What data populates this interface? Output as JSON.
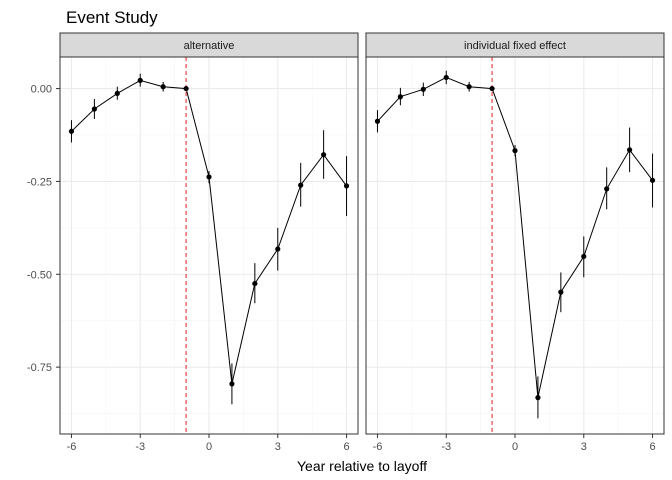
{
  "chart_data": {
    "type": "line",
    "title": "Event Study",
    "xlabel": "Year relative to layoff",
    "ylabel": "",
    "xlim": [
      -6.5,
      6.5
    ],
    "ylim": [
      -0.93,
      0.085
    ],
    "x_ticks": [
      -6,
      -3,
      0,
      3,
      6
    ],
    "x_tick_labels": [
      "-6",
      "-3",
      "0",
      "3",
      "6"
    ],
    "y_ticks": [
      0.0,
      -0.25,
      -0.5,
      -0.75
    ],
    "y_tick_labels": [
      "0.00",
      "-0.25",
      "-0.50",
      "-0.75"
    ],
    "reference_line": {
      "x": -1,
      "color": "#e41a1c",
      "style": "dashed"
    },
    "grid": true,
    "facets": [
      {
        "label": "alternative",
        "points": [
          {
            "x": -6,
            "y": -0.115,
            "lo": -0.145,
            "hi": -0.085
          },
          {
            "x": -5,
            "y": -0.055,
            "lo": -0.082,
            "hi": -0.028
          },
          {
            "x": -4,
            "y": -0.013,
            "lo": -0.03,
            "hi": 0.005
          },
          {
            "x": -3,
            "y": 0.022,
            "lo": 0.005,
            "hi": 0.04
          },
          {
            "x": -2,
            "y": 0.005,
            "lo": -0.008,
            "hi": 0.018
          },
          {
            "x": -1,
            "y": 0.0,
            "lo": 0.0,
            "hi": 0.0
          },
          {
            "x": 0,
            "y": -0.238,
            "lo": -0.255,
            "hi": -0.222
          },
          {
            "x": 1,
            "y": -0.795,
            "lo": -0.85,
            "hi": -0.74
          },
          {
            "x": 2,
            "y": -0.525,
            "lo": -0.578,
            "hi": -0.47
          },
          {
            "x": 3,
            "y": -0.432,
            "lo": -0.49,
            "hi": -0.375
          },
          {
            "x": 4,
            "y": -0.26,
            "lo": -0.318,
            "hi": -0.2
          },
          {
            "x": 5,
            "y": -0.178,
            "lo": -0.243,
            "hi": -0.112
          },
          {
            "x": 6,
            "y": -0.262,
            "lo": -0.343,
            "hi": -0.182
          }
        ]
      },
      {
        "label": "individual fixed effect",
        "points": [
          {
            "x": -6,
            "y": -0.088,
            "lo": -0.118,
            "hi": -0.058
          },
          {
            "x": -5,
            "y": -0.022,
            "lo": -0.045,
            "hi": 0.002
          },
          {
            "x": -4,
            "y": -0.002,
            "lo": -0.02,
            "hi": 0.016
          },
          {
            "x": -3,
            "y": 0.03,
            "lo": 0.012,
            "hi": 0.048
          },
          {
            "x": -2,
            "y": 0.005,
            "lo": -0.008,
            "hi": 0.018
          },
          {
            "x": -1,
            "y": 0.0,
            "lo": 0.0,
            "hi": 0.0
          },
          {
            "x": 0,
            "y": -0.167,
            "lo": -0.182,
            "hi": -0.152
          },
          {
            "x": 1,
            "y": -0.832,
            "lo": -0.888,
            "hi": -0.775
          },
          {
            "x": 2,
            "y": -0.548,
            "lo": -0.602,
            "hi": -0.495
          },
          {
            "x": 3,
            "y": -0.452,
            "lo": -0.508,
            "hi": -0.398
          },
          {
            "x": 4,
            "y": -0.27,
            "lo": -0.325,
            "hi": -0.212
          },
          {
            "x": 5,
            "y": -0.165,
            "lo": -0.225,
            "hi": -0.105
          },
          {
            "x": 6,
            "y": -0.247,
            "lo": -0.32,
            "hi": -0.175
          }
        ]
      }
    ],
    "colors": {
      "line": "#000000",
      "point": "#000000",
      "strip_fill": "#d9d9d9",
      "strip_border": "#333333",
      "panel_border": "#333333",
      "grid_major": "#ebebeb",
      "grid_minor": "#f5f5f5"
    }
  }
}
